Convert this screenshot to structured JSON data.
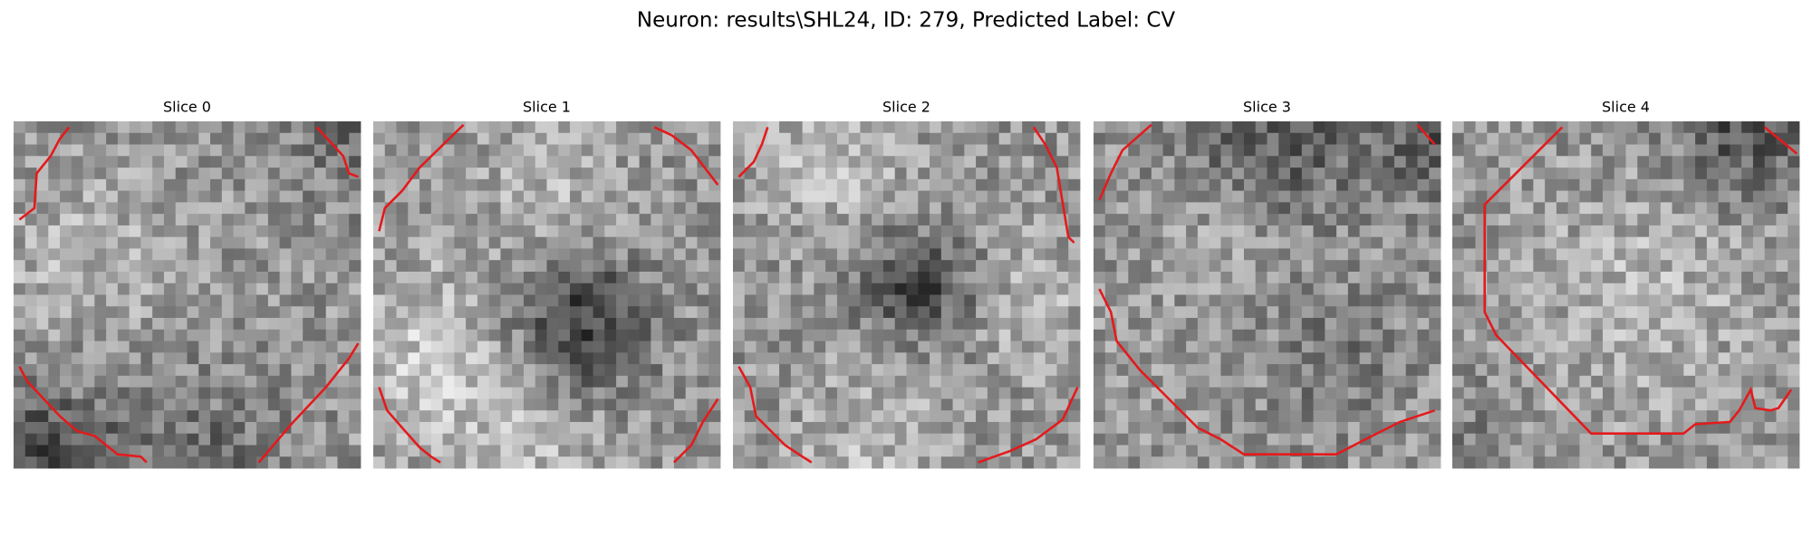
{
  "title": "Neuron: results\\SHL24, ID: 279, Predicted Label: CV",
  "panels": [
    {
      "title": "Slice 0"
    },
    {
      "title": "Slice 1"
    },
    {
      "title": "Slice 2"
    },
    {
      "title": "Slice 3"
    },
    {
      "title": "Slice 4"
    }
  ]
}
